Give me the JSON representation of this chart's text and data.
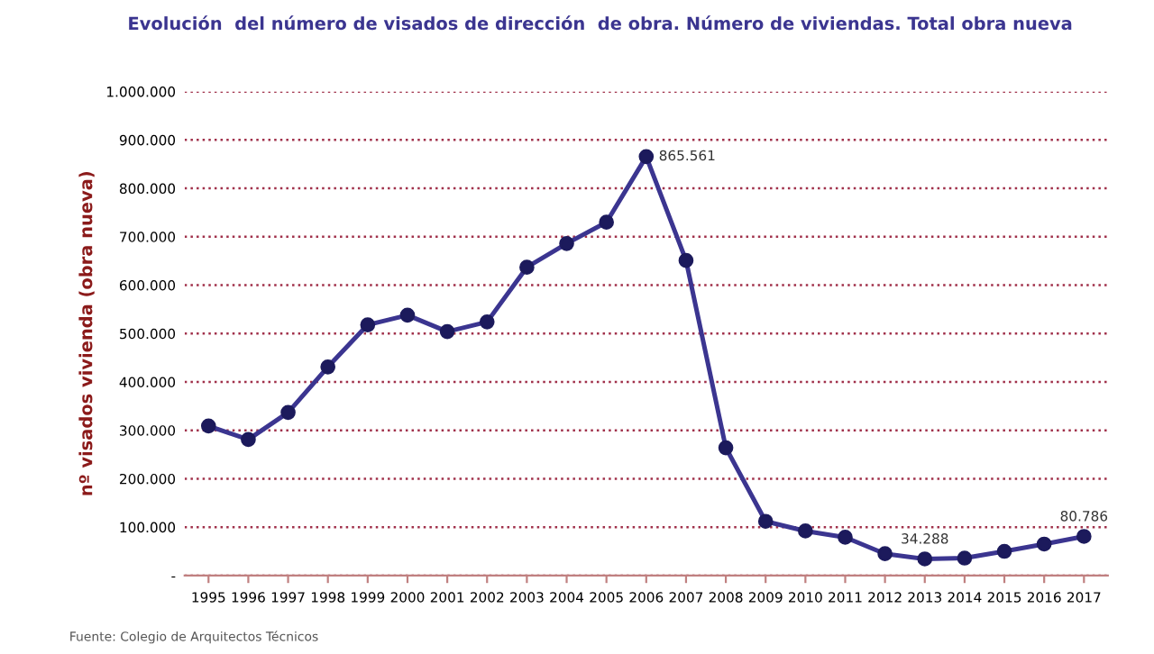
{
  "chart_data": {
    "type": "line",
    "title": "Evolución  del número de visados de dirección  de obra. Número de viviendas. Total obra nueva",
    "ylabel": "nº visados vivienda (obra nueva)",
    "categories": [
      "1995",
      "1996",
      "1997",
      "1998",
      "1999",
      "2000",
      "2001",
      "2002",
      "2003",
      "2004",
      "2005",
      "2006",
      "2007",
      "2008",
      "2009",
      "2010",
      "2011",
      "2012",
      "2013",
      "2014",
      "2015",
      "2016",
      "2017"
    ],
    "series": [
      {
        "color": "#3b3590",
        "values": [
          309000,
          281000,
          337000,
          431000,
          518000,
          538000,
          504000,
          524000,
          637000,
          686000,
          730000,
          865561,
          651000,
          264000,
          112000,
          92000,
          79000,
          45000,
          34288,
          36000,
          50000,
          65000,
          80786
        ],
        "value_labels": [
          null,
          null,
          null,
          null,
          null,
          null,
          null,
          null,
          null,
          null,
          null,
          "865.561",
          null,
          null,
          null,
          null,
          null,
          null,
          "34.288",
          null,
          null,
          null,
          "80.786"
        ]
      }
    ],
    "ylim": [
      0,
      1000000
    ],
    "yticks": [
      {
        "value": 0,
        "label": "-"
      },
      {
        "value": 100000,
        "label": "100.000"
      },
      {
        "value": 200000,
        "label": "200.000"
      },
      {
        "value": 300000,
        "label": "300.000"
      },
      {
        "value": 400000,
        "label": "400.000"
      },
      {
        "value": 500000,
        "label": "500.000"
      },
      {
        "value": 600000,
        "label": "600.000"
      },
      {
        "value": 700000,
        "label": "700.000"
      },
      {
        "value": 800000,
        "label": "800.000"
      },
      {
        "value": 900000,
        "label": "900.000"
      },
      {
        "value": 1000000,
        "label": "1.000.000"
      }
    ],
    "grid": "y",
    "marker": "circle",
    "line_style": "solid",
    "legend": false,
    "annotations": [
      "Fuente: Colegio de Arquitectos Técnicos"
    ]
  }
}
